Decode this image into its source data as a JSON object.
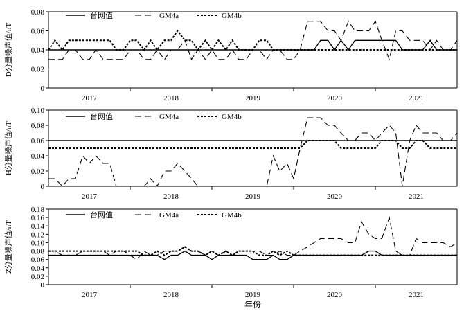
{
  "chart_data": [
    {
      "type": "line",
      "ylabel": "D分量噪声值/nT",
      "xlabel": "",
      "x_ticks": [
        "2017",
        "2018",
        "2019",
        "2020",
        "2021"
      ],
      "xlim": [
        2016.5,
        2021.5
      ],
      "ylim": [
        0,
        0.08
      ],
      "y_ticks": [
        "0",
        "0.02",
        "0.04",
        "0.06",
        "0.08"
      ],
      "legend": "top-left",
      "series": [
        {
          "name": "台网值",
          "style": "solid",
          "color": "#000000",
          "x": [
            2016.5,
            2019.75,
            2019.83,
            2019.92,
            2020.0,
            2020.08,
            2020.17,
            2020.25,
            2020.33,
            2020.42,
            2020.5,
            2020.58,
            2020.67,
            2020.75,
            2020.83,
            2020.92,
            2021.0,
            2021.08,
            2021.17,
            2021.25,
            2021.33,
            2021.42,
            2021.5
          ],
          "y": [
            0.04,
            0.04,
            0.05,
            0.05,
            0.04,
            0.05,
            0.04,
            0.05,
            0.05,
            0.05,
            0.05,
            0.05,
            0.05,
            0.05,
            0.04,
            0.04,
            0.04,
            0.04,
            0.05,
            0.04,
            0.04,
            0.04,
            0.04
          ]
        },
        {
          "name": "GM4a",
          "style": "dash",
          "color": "#000000",
          "x": [
            2016.5,
            2016.58,
            2016.67,
            2016.75,
            2016.83,
            2016.92,
            2017.0,
            2017.08,
            2017.17,
            2017.25,
            2017.33,
            2017.42,
            2017.5,
            2017.58,
            2017.67,
            2017.75,
            2017.83,
            2017.92,
            2018.0,
            2018.08,
            2018.17,
            2018.25,
            2018.33,
            2018.42,
            2018.5,
            2018.58,
            2018.67,
            2018.75,
            2018.83,
            2018.92,
            2019.0,
            2019.08,
            2019.17,
            2019.25,
            2019.33,
            2019.42,
            2019.5,
            2019.58,
            2019.67,
            2019.75,
            2019.83,
            2019.92,
            2020.0,
            2020.08,
            2020.17,
            2020.25,
            2020.33,
            2020.42,
            2020.5,
            2020.58,
            2020.67,
            2020.75,
            2020.83,
            2020.92,
            2021.0,
            2021.08,
            2021.17,
            2021.25,
            2021.33,
            2021.42,
            2021.5
          ],
          "y": [
            0.03,
            0.03,
            0.03,
            0.04,
            0.04,
            0.03,
            0.03,
            0.04,
            0.03,
            0.03,
            0.03,
            0.03,
            0.04,
            0.04,
            0.03,
            0.03,
            0.04,
            0.03,
            0.04,
            0.04,
            0.05,
            0.03,
            0.04,
            0.03,
            0.04,
            0.03,
            0.03,
            0.04,
            0.03,
            0.03,
            0.04,
            0.04,
            0.03,
            0.04,
            0.04,
            0.03,
            0.03,
            0.04,
            0.07,
            0.07,
            0.07,
            0.06,
            0.06,
            0.05,
            0.07,
            0.06,
            0.06,
            0.06,
            0.07,
            0.05,
            0.03,
            0.06,
            0.06,
            0.05,
            0.05,
            0.05,
            0.04,
            0.05,
            0.04,
            0.04,
            0.05
          ]
        },
        {
          "name": "GM4b",
          "style": "dot",
          "color": "#000000",
          "x": [
            2016.5,
            2016.58,
            2016.67,
            2016.75,
            2016.83,
            2016.92,
            2017.0,
            2017.08,
            2017.17,
            2017.25,
            2017.33,
            2017.42,
            2017.5,
            2017.58,
            2017.67,
            2017.75,
            2017.83,
            2017.92,
            2018.0,
            2018.08,
            2018.17,
            2018.25,
            2018.33,
            2018.42,
            2018.5,
            2018.58,
            2018.67,
            2018.75,
            2018.83,
            2018.92,
            2019.0,
            2019.08,
            2019.17,
            2019.25,
            2019.33,
            2019.42,
            2019.5,
            2019.58,
            2019.67,
            2019.75,
            2019.83,
            2019.92,
            2020.0,
            2020.5,
            2021.0,
            2021.5
          ],
          "y": [
            0.04,
            0.05,
            0.04,
            0.05,
            0.05,
            0.05,
            0.05,
            0.05,
            0.05,
            0.05,
            0.04,
            0.04,
            0.05,
            0.05,
            0.04,
            0.05,
            0.04,
            0.05,
            0.05,
            0.06,
            0.05,
            0.05,
            0.04,
            0.05,
            0.04,
            0.05,
            0.04,
            0.05,
            0.04,
            0.04,
            0.04,
            0.05,
            0.05,
            0.04,
            0.04,
            0.04,
            0.04,
            0.04,
            0.04,
            0.04,
            0.04,
            0.04,
            0.04,
            0.04,
            0.04,
            0.04
          ]
        }
      ]
    },
    {
      "type": "line",
      "ylabel": "H分量噪声值/nT",
      "xlabel": "",
      "x_ticks": [
        "2017",
        "2018",
        "2019",
        "2020",
        "2021"
      ],
      "xlim": [
        2016.5,
        2021.5
      ],
      "ylim": [
        0,
        0.1
      ],
      "y_ticks": [
        "0",
        "0.02",
        "0.04",
        "0.06",
        "0.08",
        "0.10"
      ],
      "legend": "top-left",
      "series": [
        {
          "name": "台网值",
          "style": "solid",
          "color": "#000000",
          "x": [
            2016.5,
            2021.5
          ],
          "y": [
            0.06,
            0.06
          ]
        },
        {
          "name": "GM4a",
          "style": "dash",
          "color": "#000000",
          "x": [
            2016.5,
            2016.58,
            2016.67,
            2016.75,
            2016.83,
            2016.92,
            2017.0,
            2017.08,
            2017.17,
            2017.25,
            2017.33,
            2017.42,
            2017.5,
            2017.58,
            2017.67,
            2017.75,
            2017.83,
            2017.92,
            2018.0,
            2018.08,
            2018.17,
            2018.25,
            2018.33,
            2018.42,
            2018.5,
            2018.58,
            2018.67,
            2018.75,
            2018.83,
            2018.92,
            2019.0,
            2019.08,
            2019.17,
            2019.25,
            2019.33,
            2019.42,
            2019.5,
            2019.58,
            2019.67,
            2019.75,
            2019.83,
            2019.92,
            2020.0,
            2020.08,
            2020.17,
            2020.25,
            2020.33,
            2020.42,
            2020.5,
            2020.58,
            2020.67,
            2020.75,
            2020.83,
            2020.92,
            2021.0,
            2021.08,
            2021.17,
            2021.25,
            2021.33,
            2021.42,
            2021.5
          ],
          "y": [
            0.01,
            0.01,
            0.0,
            0.01,
            0.01,
            0.04,
            0.03,
            0.04,
            0.03,
            0.03,
            0.0,
            0.0,
            0.0,
            0.0,
            0.0,
            0.01,
            0.0,
            0.02,
            0.02,
            0.03,
            0.02,
            0.01,
            0.0,
            0.0,
            0.0,
            0.0,
            0.0,
            0.0,
            0.0,
            0.0,
            0.0,
            0.0,
            0.0,
            0.04,
            0.02,
            0.03,
            0.01,
            0.05,
            0.09,
            0.09,
            0.09,
            0.08,
            0.08,
            0.07,
            0.06,
            0.06,
            0.07,
            0.07,
            0.06,
            0.07,
            0.08,
            0.07,
            0.0,
            0.06,
            0.08,
            0.07,
            0.07,
            0.07,
            0.06,
            0.06,
            0.07
          ]
        },
        {
          "name": "GM4b",
          "style": "dot",
          "color": "#000000",
          "x": [
            2016.5,
            2019.58,
            2019.67,
            2019.75,
            2019.83,
            2019.92,
            2020.0,
            2020.08,
            2020.17,
            2020.25,
            2020.33,
            2020.42,
            2020.5,
            2020.58,
            2020.67,
            2020.75,
            2020.83,
            2020.92,
            2021.0,
            2021.08,
            2021.17,
            2021.25,
            2021.5
          ],
          "y": [
            0.05,
            0.05,
            0.06,
            0.06,
            0.06,
            0.06,
            0.06,
            0.05,
            0.05,
            0.05,
            0.05,
            0.05,
            0.05,
            0.06,
            0.06,
            0.06,
            0.05,
            0.05,
            0.06,
            0.06,
            0.05,
            0.05,
            0.05
          ]
        }
      ]
    },
    {
      "type": "line",
      "ylabel": "Z分量噪声值/nT",
      "xlabel": "年份",
      "x_ticks": [
        "2017",
        "2018",
        "2019",
        "2020",
        "2021"
      ],
      "xlim": [
        2016.5,
        2021.5
      ],
      "ylim": [
        0,
        0.18
      ],
      "y_ticks": [
        "0",
        "0.02",
        "0.04",
        "0.06",
        "0.08",
        "0.10",
        "0.12",
        "0.14",
        "0.16",
        "0.18"
      ],
      "legend": "top-left",
      "series": [
        {
          "name": "台网值",
          "style": "solid",
          "color": "#000000",
          "x": [
            2016.5,
            2017.58,
            2017.67,
            2017.75,
            2017.83,
            2017.92,
            2018.0,
            2018.08,
            2018.17,
            2018.25,
            2018.33,
            2018.42,
            2018.5,
            2018.58,
            2018.67,
            2018.75,
            2018.83,
            2018.92,
            2019.0,
            2019.08,
            2019.17,
            2019.25,
            2019.33,
            2019.42,
            2019.5,
            2019.58,
            2019.67,
            2019.75,
            2020.33,
            2020.42,
            2020.5,
            2020.58,
            2020.67,
            2020.75,
            2021.5
          ],
          "y": [
            0.07,
            0.07,
            0.07,
            0.07,
            0.07,
            0.06,
            0.07,
            0.07,
            0.08,
            0.07,
            0.07,
            0.07,
            0.06,
            0.07,
            0.07,
            0.07,
            0.07,
            0.07,
            0.06,
            0.06,
            0.06,
            0.07,
            0.06,
            0.06,
            0.07,
            0.07,
            0.07,
            0.07,
            0.07,
            0.08,
            0.08,
            0.07,
            0.07,
            0.07,
            0.07
          ]
        },
        {
          "name": "GM4a",
          "style": "dash",
          "color": "#000000",
          "x": [
            2016.5,
            2016.58,
            2016.67,
            2016.75,
            2016.83,
            2016.92,
            2017.0,
            2017.08,
            2017.17,
            2017.25,
            2017.33,
            2017.42,
            2017.5,
            2017.58,
            2017.67,
            2017.75,
            2017.83,
            2017.92,
            2018.0,
            2018.08,
            2018.17,
            2018.25,
            2018.33,
            2018.42,
            2018.5,
            2018.58,
            2018.67,
            2018.75,
            2018.83,
            2018.92,
            2019.0,
            2019.08,
            2019.17,
            2019.25,
            2019.33,
            2019.42,
            2019.5,
            2019.58,
            2019.67,
            2019.75,
            2019.83,
            2019.92,
            2020.0,
            2020.08,
            2020.17,
            2020.25,
            2020.33,
            2020.42,
            2020.5,
            2020.58,
            2020.67,
            2020.75,
            2020.83,
            2020.92,
            2021.0,
            2021.08,
            2021.17,
            2021.25,
            2021.33,
            2021.42,
            2021.5
          ],
          "y": [
            0.08,
            0.08,
            0.07,
            0.07,
            0.07,
            0.08,
            0.08,
            0.08,
            0.08,
            0.07,
            0.08,
            0.08,
            0.07,
            0.06,
            0.08,
            0.07,
            0.07,
            0.08,
            0.08,
            0.08,
            0.09,
            0.08,
            0.08,
            0.07,
            0.08,
            0.07,
            0.08,
            0.07,
            0.08,
            0.08,
            0.08,
            0.08,
            0.07,
            0.07,
            0.08,
            0.07,
            0.07,
            0.08,
            0.09,
            0.1,
            0.11,
            0.11,
            0.11,
            0.11,
            0.1,
            0.1,
            0.15,
            0.12,
            0.11,
            0.11,
            0.16,
            0.08,
            0.07,
            0.07,
            0.11,
            0.1,
            0.1,
            0.1,
            0.1,
            0.09,
            0.1
          ]
        },
        {
          "name": "GM4b",
          "style": "dot",
          "color": "#000000",
          "x": [
            2016.5,
            2017.58,
            2017.67,
            2017.75,
            2017.83,
            2017.92,
            2018.0,
            2018.08,
            2018.17,
            2018.25,
            2018.33,
            2018.42,
            2018.5,
            2018.58,
            2018.67,
            2018.75,
            2018.83,
            2018.92,
            2019.0,
            2019.08,
            2019.17,
            2019.25,
            2019.33,
            2019.42,
            2019.5,
            2019.58,
            2019.67,
            2021.5
          ],
          "y": [
            0.08,
            0.08,
            0.07,
            0.07,
            0.08,
            0.07,
            0.08,
            0.08,
            0.09,
            0.08,
            0.08,
            0.07,
            0.08,
            0.07,
            0.08,
            0.07,
            0.08,
            0.08,
            0.08,
            0.07,
            0.07,
            0.08,
            0.07,
            0.08,
            0.07,
            0.07,
            0.07,
            0.07
          ]
        }
      ]
    }
  ]
}
